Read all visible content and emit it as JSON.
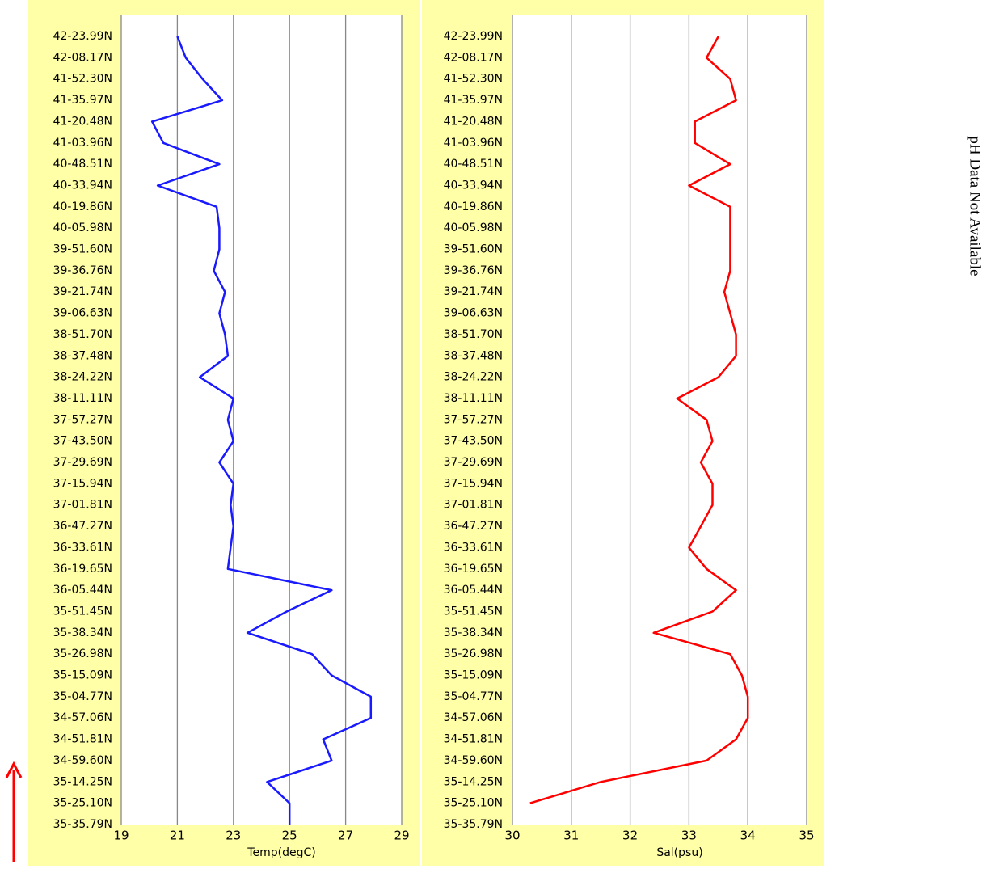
{
  "chart_data": [
    {
      "type": "line",
      "xlabel": "Temp(degC)",
      "categories": [
        "35-35.79N",
        "35-25.10N",
        "35-14.25N",
        "34-59.60N",
        "34-51.81N",
        "34-57.06N",
        "35-04.77N",
        "35-15.09N",
        "35-26.98N",
        "35-38.34N",
        "35-51.45N",
        "36-05.44N",
        "36-19.65N",
        "36-33.61N",
        "36-47.27N",
        "37-01.81N",
        "37-15.94N",
        "37-29.69N",
        "37-43.50N",
        "37-57.27N",
        "38-11.11N",
        "38-24.22N",
        "38-37.48N",
        "38-51.70N",
        "39-06.63N",
        "39-21.74N",
        "39-36.76N",
        "39-51.60N",
        "40-05.98N",
        "40-19.86N",
        "40-33.94N",
        "40-48.51N",
        "41-03.96N",
        "41-20.48N",
        "41-35.97N",
        "41-52.30N",
        "42-08.17N",
        "42-23.99N"
      ],
      "series": [
        {
          "color": "#1a1aff",
          "values": [
            25.0,
            25.0,
            24.2,
            26.5,
            26.2,
            27.9,
            27.9,
            26.5,
            25.8,
            23.5,
            24.9,
            26.5,
            22.8,
            22.9,
            23.0,
            22.9,
            23.0,
            22.5,
            23.0,
            22.8,
            23.0,
            21.8,
            22.8,
            22.7,
            22.5,
            22.7,
            22.3,
            22.5,
            22.5,
            22.4,
            20.3,
            22.5,
            20.5,
            20.1,
            22.6,
            21.9,
            21.3,
            21.0
          ]
        }
      ],
      "xlim": [
        19,
        29
      ],
      "xticks": [
        19,
        21,
        23,
        25,
        27,
        29
      ],
      "grid": true
    },
    {
      "type": "line",
      "xlabel": "Sal(psu)",
      "categories": [
        "35-35.79N",
        "35-25.10N",
        "35-14.25N",
        "34-59.60N",
        "34-51.81N",
        "34-57.06N",
        "35-04.77N",
        "35-15.09N",
        "35-26.98N",
        "35-38.34N",
        "35-51.45N",
        "36-05.44N",
        "36-19.65N",
        "36-33.61N",
        "36-47.27N",
        "37-01.81N",
        "37-15.94N",
        "37-29.69N",
        "37-43.50N",
        "37-57.27N",
        "38-11.11N",
        "38-24.22N",
        "38-37.48N",
        "38-51.70N",
        "39-06.63N",
        "39-21.74N",
        "39-36.76N",
        "39-51.60N",
        "40-05.98N",
        "40-19.86N",
        "40-33.94N",
        "40-48.51N",
        "41-03.96N",
        "41-20.48N",
        "41-35.97N",
        "41-52.30N",
        "42-08.17N",
        "42-23.99N"
      ],
      "series": [
        {
          "color": "#ff0000",
          "values": [
            null,
            30.3,
            31.5,
            33.3,
            33.8,
            34.0,
            34.0,
            33.9,
            33.7,
            32.4,
            33.4,
            33.8,
            33.3,
            33.0,
            33.2,
            33.4,
            33.4,
            33.2,
            33.4,
            33.3,
            32.8,
            33.5,
            33.8,
            33.8,
            33.7,
            33.6,
            33.7,
            33.7,
            33.7,
            33.7,
            33.0,
            33.7,
            33.1,
            33.1,
            33.8,
            33.7,
            33.3,
            33.5
          ]
        }
      ],
      "xlim": [
        30,
        35
      ],
      "xticks": [
        30,
        31,
        32,
        33,
        34,
        35
      ],
      "grid": true
    }
  ],
  "annotation": "pH Data Not Available"
}
